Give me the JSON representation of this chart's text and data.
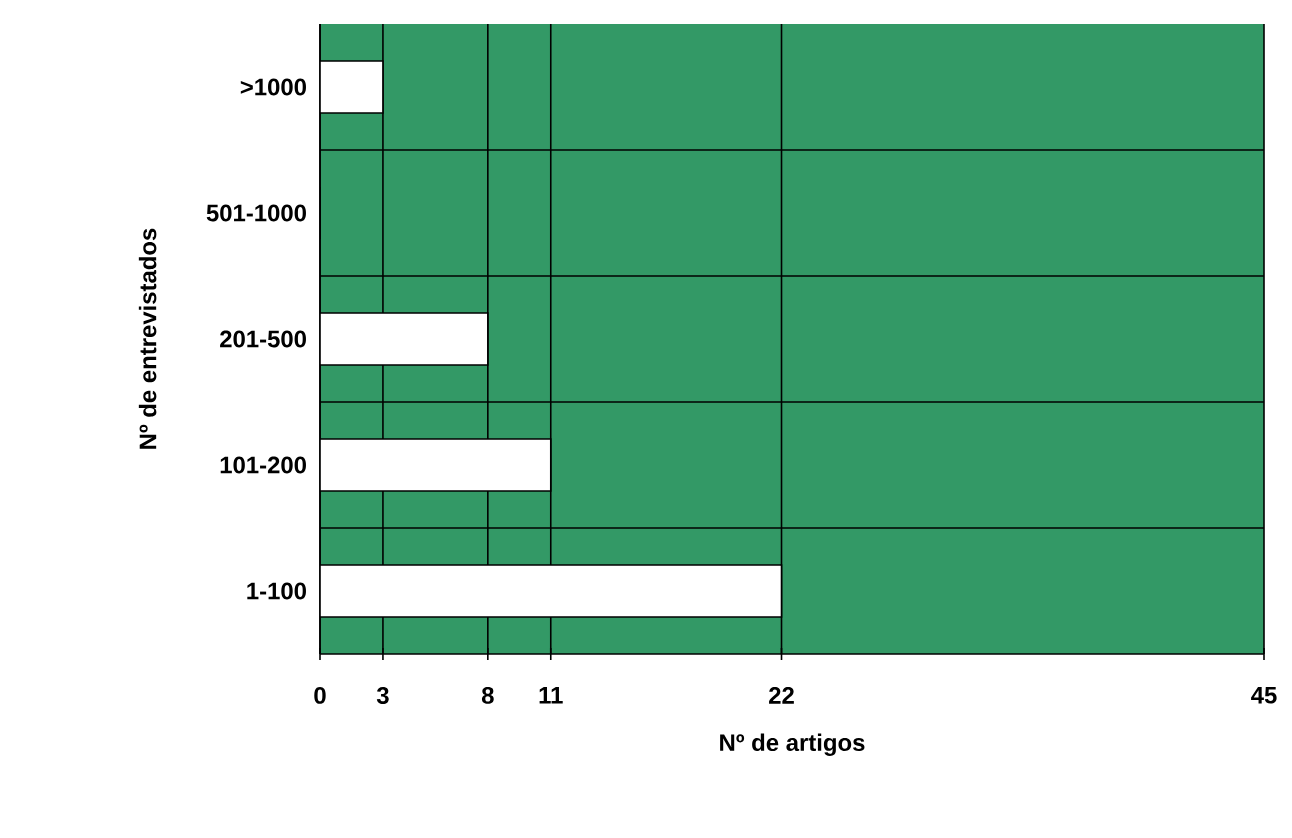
{
  "chart_data": {
    "type": "bar",
    "orientation": "horizontal",
    "xlabel": "Nº de artigos",
    "ylabel": "Nº de entrevistados",
    "categories": [
      ">1000",
      "501-1000",
      "201-500",
      "101-200",
      "1-100"
    ],
    "values": [
      3,
      0,
      8,
      11,
      22
    ],
    "color": "#ffffff",
    "xlim": [
      0,
      45
    ],
    "xticks": [
      0,
      3,
      8,
      11,
      22,
      45
    ],
    "grid": true
  }
}
